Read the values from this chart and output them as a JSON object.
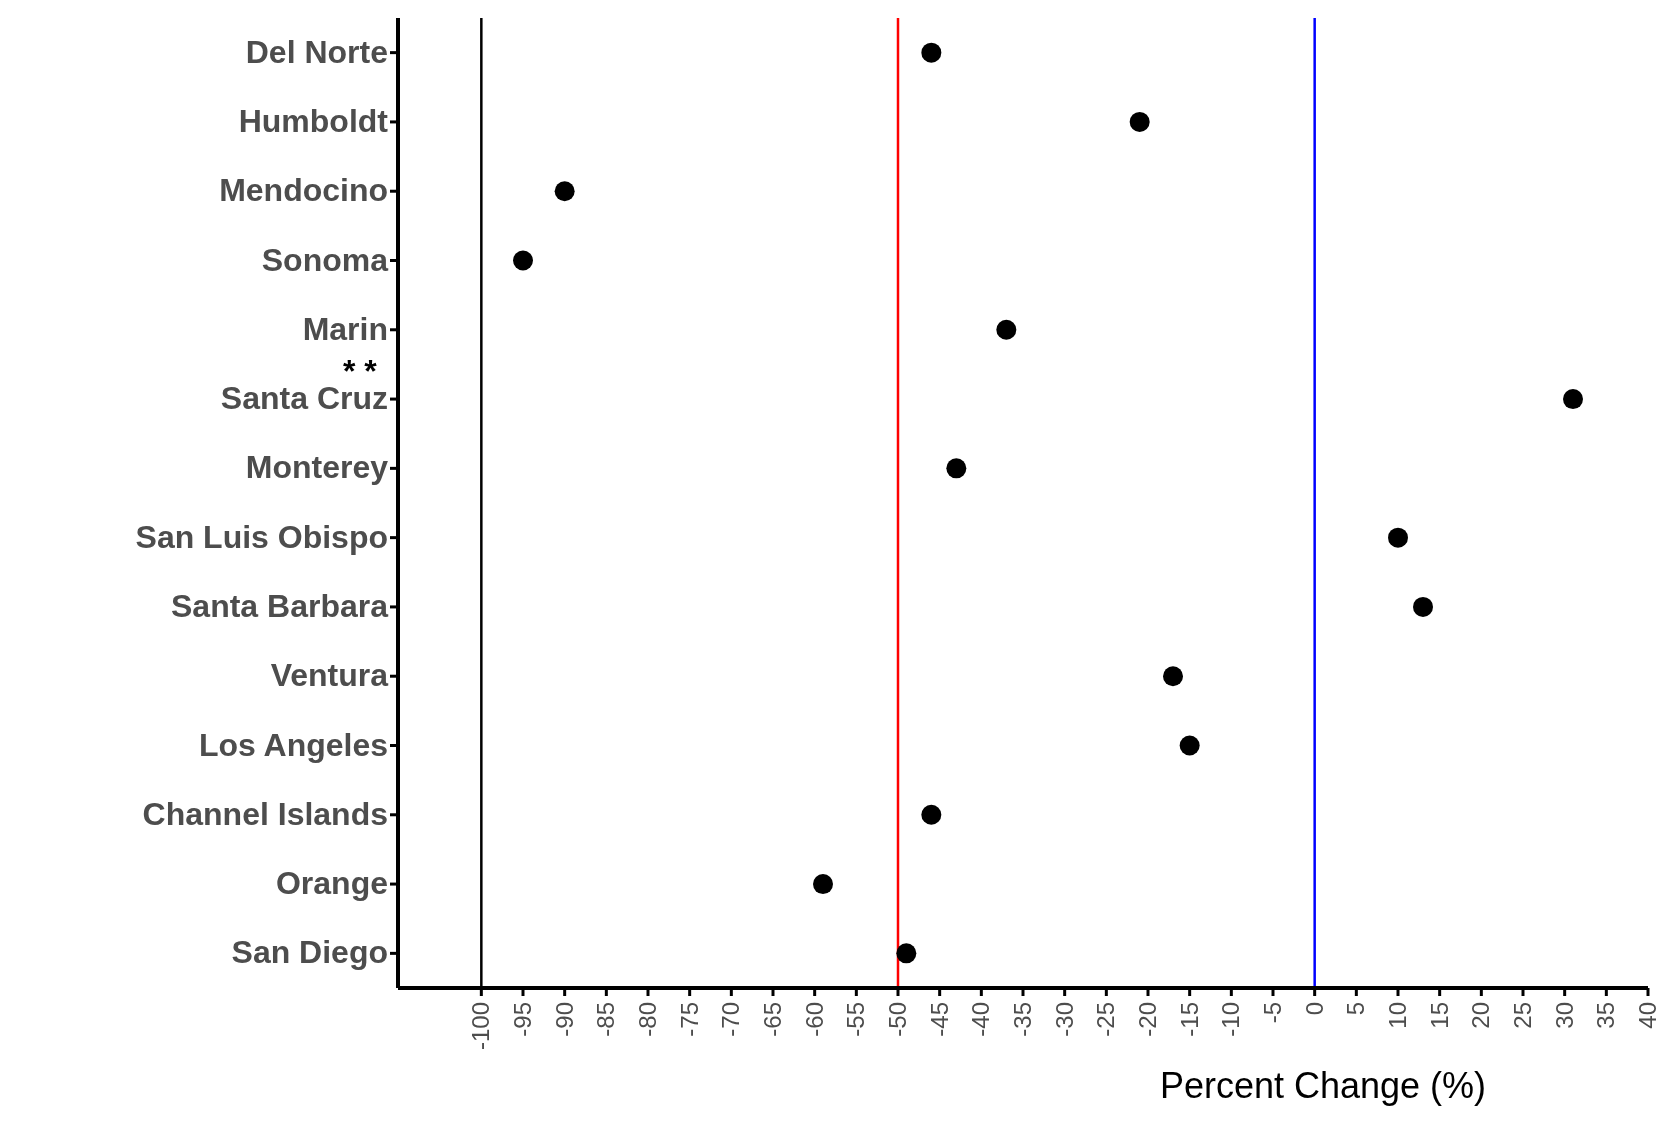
{
  "chart_data": {
    "type": "scatter",
    "xlabel": "Percent Change (%)",
    "categories": [
      "Del Norte",
      "Humboldt",
      "Mendocino",
      "Sonoma",
      "Marin",
      "Santa Cruz",
      "Monterey",
      "San Luis Obispo",
      "Santa Barbara",
      "Ventura",
      "Los Angeles",
      "Channel Islands",
      "Orange",
      "San Diego"
    ],
    "series": [
      {
        "color": "#000000",
        "values": [
          -46,
          -21,
          -90,
          -95,
          -37,
          31,
          -43,
          10,
          13,
          -17,
          -15,
          -46,
          -59,
          -49
        ]
      }
    ],
    "orientation": "horizontal",
    "marker": "circle",
    "grid": false,
    "legend": false,
    "xlim": [
      -110,
      40
    ],
    "xticks": [
      -100,
      -95,
      -90,
      -85,
      -80,
      -75,
      -70,
      -65,
      -60,
      -55,
      -50,
      -45,
      -40,
      -35,
      -30,
      -25,
      -20,
      -15,
      -10,
      -5,
      0,
      5,
      10,
      15,
      20,
      25,
      30,
      35,
      40
    ],
    "ref_lines": [
      {
        "axis": "x",
        "value": -100,
        "color": "#000000"
      },
      {
        "axis": "x",
        "value": -50,
        "color": "#ff0000"
      },
      {
        "axis": "x",
        "value": 0,
        "color": "#0000ff"
      }
    ],
    "annotations": [
      "* *"
    ]
  }
}
